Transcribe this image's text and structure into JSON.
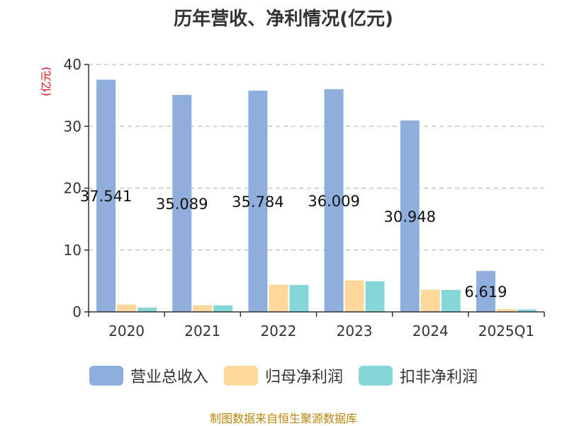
{
  "chart_data": {
    "type": "bar",
    "title": "历年营收、净利情况(亿元)",
    "ylabel": "(亿元)",
    "xlabel": "",
    "categories": [
      "2020",
      "2021",
      "2022",
      "2023",
      "2024",
      "2025Q1"
    ],
    "ylim": [
      0,
      40
    ],
    "yticks": [
      0,
      10,
      20,
      30,
      40
    ],
    "grid": true,
    "legend_position": "bottom",
    "series": [
      {
        "name": "营业总收入",
        "color": "#8eaedc",
        "values": [
          37.541,
          35.089,
          35.784,
          36.009,
          30.948,
          6.619
        ],
        "labels": [
          "37.541",
          "35.089",
          "35.784",
          "36.009",
          "30.948",
          "6.619"
        ]
      },
      {
        "name": "归母净利润",
        "color": "#fdd89a",
        "values": [
          1.2,
          1.05,
          4.4,
          5.1,
          3.6,
          0.45
        ]
      },
      {
        "name": "扣非净利润",
        "color": "#85d6d6",
        "values": [
          0.7,
          1.05,
          4.35,
          4.95,
          3.55,
          0.4
        ]
      }
    ],
    "source": "制图数据来自恒生聚源数据库"
  }
}
